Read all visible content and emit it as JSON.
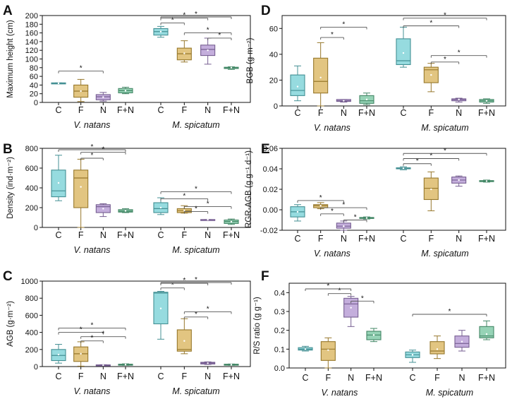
{
  "categories": [
    "C",
    "F",
    "N",
    "F+N"
  ],
  "groups": [
    "V. natans",
    "M. spicatum"
  ],
  "colors": {
    "C": "#5ec8cd",
    "F": "#d2a63d",
    "N": "#a483c9",
    "F+N": "#5dbb8e"
  },
  "chart_data": [
    {
      "panel": "A",
      "type": "box",
      "ylabel": "Maximum height (cm)",
      "ylim": [
        0,
        200
      ],
      "yticks": [
        "0",
        "20",
        "40",
        "60",
        "80",
        "100",
        "120",
        "140",
        "160",
        "180",
        "200"
      ],
      "series": [
        {
          "group": "V. natans",
          "boxes": [
            {
              "cat": "C",
              "min": 43,
              "q1": 43,
              "median": 44,
              "q3": 45,
              "max": 45,
              "mean": 44
            },
            {
              "cat": "F",
              "min": 2,
              "q1": 12,
              "median": 26,
              "q3": 40,
              "max": 53,
              "mean": 26
            },
            {
              "cat": "N",
              "min": 3,
              "q1": 6,
              "median": 13,
              "q3": 18,
              "max": 23,
              "mean": 12
            },
            {
              "cat": "F+N",
              "min": 20,
              "q1": 22,
              "median": 27,
              "q3": 32,
              "max": 35,
              "mean": 27
            }
          ]
        },
        {
          "group": "M. spicatum",
          "boxes": [
            {
              "cat": "C",
              "min": 150,
              "q1": 155,
              "median": 163,
              "q3": 170,
              "max": 175,
              "mean": 163
            },
            {
              "cat": "F",
              "min": 93,
              "q1": 98,
              "median": 112,
              "q3": 125,
              "max": 142,
              "mean": 113
            },
            {
              "cat": "N",
              "min": 88,
              "q1": 108,
              "median": 122,
              "q3": 132,
              "max": 148,
              "mean": 120
            },
            {
              "cat": "F+N",
              "min": 76,
              "q1": 78,
              "median": 80,
              "q3": 81,
              "max": 82,
              "mean": 80
            }
          ]
        }
      ],
      "brackets": [
        {
          "group": 0,
          "from": "C",
          "to": "N",
          "y": 72,
          "label": "*"
        },
        {
          "group": 1,
          "from": "C",
          "to": "F",
          "y": 183,
          "label": "*"
        },
        {
          "group": 1,
          "from": "C",
          "to": "N",
          "y": 194,
          "label": "*"
        },
        {
          "group": 1,
          "from": "C",
          "to": "F+N",
          "y": 205,
          "label": "*"
        },
        {
          "group": 1,
          "from": "F",
          "to": "F+N",
          "y": 160,
          "label": "*"
        },
        {
          "group": 1,
          "from": "N",
          "to": "F+N",
          "y": 148,
          "label": "*"
        }
      ]
    },
    {
      "panel": "B",
      "type": "box",
      "ylabel": "Density (ind·m⁻²)",
      "ylim": [
        0,
        800
      ],
      "yticks": [
        "0",
        "200",
        "400",
        "600",
        "800"
      ],
      "series": [
        {
          "group": "V. natans",
          "boxes": [
            {
              "cat": "C",
              "min": 270,
              "q1": 310,
              "median": 370,
              "q3": 580,
              "max": 730,
              "mean": 450
            },
            {
              "cat": "F",
              "min": 0,
              "q1": 200,
              "median": 500,
              "q3": 580,
              "max": 690,
              "mean": 410
            },
            {
              "cat": "N",
              "min": 110,
              "q1": 150,
              "median": 210,
              "q3": 230,
              "max": 240,
              "mean": 190
            },
            {
              "cat": "F+N",
              "min": 150,
              "q1": 155,
              "median": 165,
              "q3": 180,
              "max": 190,
              "mean": 168
            }
          ]
        },
        {
          "group": "M. spicatum",
          "boxes": [
            {
              "cat": "C",
              "min": 130,
              "q1": 150,
              "median": 190,
              "q3": 250,
              "max": 300,
              "mean": 200
            },
            {
              "cat": "F",
              "min": 145,
              "q1": 150,
              "median": 170,
              "q3": 190,
              "max": 220,
              "mean": 172
            },
            {
              "cat": "N",
              "min": 75,
              "q1": 75,
              "median": 78,
              "q3": 80,
              "max": 80,
              "mean": 78
            },
            {
              "cat": "F+N",
              "min": 30,
              "q1": 40,
              "median": 60,
              "q3": 75,
              "max": 85,
              "mean": 58
            }
          ]
        }
      ],
      "brackets": [
        {
          "group": 0,
          "from": "C",
          "to": "F+N",
          "y": 800,
          "label": "*"
        },
        {
          "group": 0,
          "from": "F",
          "to": "N",
          "y": 700,
          "label": "*"
        },
        {
          "group": 0,
          "from": "F",
          "to": "F+N",
          "y": 760,
          "label": "*"
        },
        {
          "group": 1,
          "from": "C",
          "to": "F+N",
          "y": 360,
          "label": "*"
        },
        {
          "group": 1,
          "from": "C",
          "to": "N",
          "y": 290,
          "label": "*"
        },
        {
          "group": 1,
          "from": "F",
          "to": "F+N",
          "y": 210,
          "label": "*"
        },
        {
          "group": 1,
          "from": "F",
          "to": "N",
          "y": 160,
          "label": "*"
        }
      ]
    },
    {
      "panel": "C",
      "type": "box",
      "ylabel": "AGB (g·m⁻²)",
      "ylim": [
        0,
        1000
      ],
      "yticks": [
        "0",
        "200",
        "400",
        "600",
        "800",
        "1000"
      ],
      "series": [
        {
          "group": "V. natans",
          "boxes": [
            {
              "cat": "C",
              "min": 40,
              "q1": 70,
              "median": 130,
              "q3": 200,
              "max": 260,
              "mean": 140
            },
            {
              "cat": "F",
              "min": 5,
              "q1": 60,
              "median": 150,
              "q3": 230,
              "max": 290,
              "mean": 150
            },
            {
              "cat": "N",
              "min": 10,
              "q1": 12,
              "median": 15,
              "q3": 20,
              "max": 22,
              "mean": 15
            },
            {
              "cat": "F+N",
              "min": 15,
              "q1": 18,
              "median": 22,
              "q3": 28,
              "max": 32,
              "mean": 23
            }
          ]
        },
        {
          "group": "M. spicatum",
          "boxes": [
            {
              "cat": "C",
              "min": 320,
              "q1": 500,
              "median": 860,
              "q3": 870,
              "max": 880,
              "mean": 680
            },
            {
              "cat": "F",
              "min": 150,
              "q1": 180,
              "median": 200,
              "q3": 430,
              "max": 560,
              "mean": 300
            },
            {
              "cat": "N",
              "min": 25,
              "q1": 30,
              "median": 40,
              "q3": 50,
              "max": 55,
              "mean": 40
            },
            {
              "cat": "F+N",
              "min": 15,
              "q1": 18,
              "median": 22,
              "q3": 28,
              "max": 30,
              "mean": 22
            }
          ]
        }
      ],
      "brackets": [
        {
          "group": 0,
          "from": "C",
          "to": "F+N",
          "y": 450,
          "label": "*"
        },
        {
          "group": 0,
          "from": "C",
          "to": "N",
          "y": 400,
          "label": "*"
        },
        {
          "group": 0,
          "from": "F",
          "to": "F+N",
          "y": 350,
          "label": "*"
        },
        {
          "group": 0,
          "from": "F",
          "to": "N",
          "y": 300,
          "label": "*"
        },
        {
          "group": 1,
          "from": "C",
          "to": "F",
          "y": 920,
          "label": "*"
        },
        {
          "group": 1,
          "from": "C",
          "to": "N",
          "y": 975,
          "label": "*"
        },
        {
          "group": 1,
          "from": "C",
          "to": "F+N",
          "y": 1030,
          "label": "*"
        },
        {
          "group": 1,
          "from": "F",
          "to": "N",
          "y": 580,
          "label": "*"
        },
        {
          "group": 1,
          "from": "F",
          "to": "F+N",
          "y": 640,
          "label": "*"
        }
      ]
    },
    {
      "panel": "D",
      "type": "box",
      "ylabel": "BGB (g·m⁻²)",
      "ylim": [
        0,
        70
      ],
      "yticks": [
        "0",
        "20",
        "40",
        "60"
      ],
      "series": [
        {
          "group": "V. natans",
          "boxes": [
            {
              "cat": "C",
              "min": 4,
              "q1": 8,
              "median": 12,
              "q3": 24,
              "max": 31,
              "mean": 15
            },
            {
              "cat": "F",
              "min": 0,
              "q1": 10,
              "median": 19,
              "q3": 37,
              "max": 49,
              "mean": 22
            },
            {
              "cat": "N",
              "min": 3,
              "q1": 3.5,
              "median": 4,
              "q3": 5,
              "max": 5,
              "mean": 4
            },
            {
              "cat": "F+N",
              "min": 1,
              "q1": 2,
              "median": 4,
              "q3": 8,
              "max": 10,
              "mean": 5
            }
          ]
        },
        {
          "group": "M. spicatum",
          "boxes": [
            {
              "cat": "C",
              "min": 30,
              "q1": 32,
              "median": 35,
              "q3": 52,
              "max": 61,
              "mean": 41
            },
            {
              "cat": "F",
              "min": 11,
              "q1": 18,
              "median": 28,
              "q3": 30,
              "max": 33,
              "mean": 24
            },
            {
              "cat": "N",
              "min": 3,
              "q1": 4,
              "median": 5,
              "q3": 5.5,
              "max": 6,
              "mean": 5
            },
            {
              "cat": "F+N",
              "min": 2,
              "q1": 3,
              "median": 4,
              "q3": 5,
              "max": 5.5,
              "mean": 4
            }
          ]
        }
      ],
      "brackets": [
        {
          "group": 0,
          "from": "F",
          "to": "N",
          "y": 53,
          "label": "*"
        },
        {
          "group": 0,
          "from": "F",
          "to": "F+N",
          "y": 61,
          "label": "*"
        },
        {
          "group": 1,
          "from": "C",
          "to": "F+N",
          "y": 68,
          "label": "*"
        },
        {
          "group": 1,
          "from": "C",
          "to": "N",
          "y": 62,
          "label": "*"
        },
        {
          "group": 1,
          "from": "F",
          "to": "F+N",
          "y": 39,
          "label": "*"
        },
        {
          "group": 1,
          "from": "F",
          "to": "N",
          "y": 34,
          "label": "*"
        }
      ]
    },
    {
      "panel": "E",
      "type": "box",
      "ylabel": "RGR-AGB (g g⁻¹ d⁻¹)",
      "ylim": [
        -0.02,
        0.06
      ],
      "yticks": [
        "-0.02",
        "0.00",
        "0.02",
        "0.04",
        "0.06"
      ],
      "series": [
        {
          "group": "V. natans",
          "boxes": [
            {
              "cat": "C",
              "min": -0.011,
              "q1": -0.007,
              "median": -0.002,
              "q3": 0.003,
              "max": 0.005,
              "mean": -0.002
            },
            {
              "cat": "F",
              "min": 0.001,
              "q1": 0.002,
              "median": 0.004,
              "q3": 0.005,
              "max": 0.007,
              "mean": 0.004
            },
            {
              "cat": "N",
              "min": -0.02,
              "q1": -0.018,
              "median": -0.016,
              "q3": -0.013,
              "max": -0.011,
              "mean": -0.016
            },
            {
              "cat": "F+N",
              "min": -0.009,
              "q1": -0.0085,
              "median": -0.008,
              "q3": -0.0075,
              "max": -0.007,
              "mean": -0.008
            }
          ]
        },
        {
          "group": "M. spicatum",
          "boxes": [
            {
              "cat": "C",
              "min": 0.039,
              "q1": 0.04,
              "median": 0.0405,
              "q3": 0.041,
              "max": 0.042,
              "mean": 0.0405
            },
            {
              "cat": "F",
              "min": -0.001,
              "q1": 0.01,
              "median": 0.021,
              "q3": 0.031,
              "max": 0.037,
              "mean": 0.02
            },
            {
              "cat": "N",
              "min": 0.023,
              "q1": 0.026,
              "median": 0.029,
              "q3": 0.032,
              "max": 0.033,
              "mean": 0.029
            },
            {
              "cat": "F+N",
              "min": 0.027,
              "q1": 0.0275,
              "median": 0.028,
              "q3": 0.0285,
              "max": 0.029,
              "mean": 0.028
            }
          ]
        }
      ],
      "brackets": [
        {
          "group": 0,
          "from": "C",
          "to": "N",
          "y": 0.009,
          "label": "*"
        },
        {
          "group": 0,
          "from": "F",
          "to": "N",
          "y": -0.004,
          "label": "*"
        },
        {
          "group": 0,
          "from": "F",
          "to": "F+N",
          "y": 0.002,
          "label": "*"
        },
        {
          "group": 0,
          "from": "N",
          "to": "F+N",
          "y": -0.01,
          "label": "*"
        },
        {
          "group": 1,
          "from": "C",
          "to": "F",
          "y": 0.045,
          "label": "*"
        },
        {
          "group": 1,
          "from": "C",
          "to": "N",
          "y": 0.05,
          "label": "*"
        },
        {
          "group": 1,
          "from": "C",
          "to": "F+N",
          "y": 0.055,
          "label": "*"
        }
      ]
    },
    {
      "panel": "F",
      "type": "box",
      "ylabel": "R/S ratio (g g⁻¹)",
      "ylim": [
        0,
        0.45
      ],
      "yticks": [
        "0.0",
        "0.1",
        "0.2",
        "0.3",
        "0.4"
      ],
      "series": [
        {
          "group": "V. natans",
          "boxes": [
            {
              "cat": "C",
              "min": 0.09,
              "q1": 0.095,
              "median": 0.1,
              "q3": 0.108,
              "max": 0.115,
              "mean": 0.1
            },
            {
              "cat": "F",
              "min": 0.0,
              "q1": 0.04,
              "median": 0.1,
              "q3": 0.14,
              "max": 0.16,
              "mean": 0.095
            },
            {
              "cat": "N",
              "min": 0.22,
              "q1": 0.27,
              "median": 0.34,
              "q3": 0.37,
              "max": 0.38,
              "mean": 0.32
            },
            {
              "cat": "F+N",
              "min": 0.14,
              "q1": 0.15,
              "median": 0.175,
              "q3": 0.195,
              "max": 0.21,
              "mean": 0.175
            }
          ]
        },
        {
          "group": "M. spicatum",
          "boxes": [
            {
              "cat": "C",
              "min": 0.03,
              "q1": 0.055,
              "median": 0.07,
              "q3": 0.085,
              "max": 0.095,
              "mean": 0.07
            },
            {
              "cat": "F",
              "min": 0.05,
              "q1": 0.075,
              "median": 0.09,
              "q3": 0.14,
              "max": 0.17,
              "mean": 0.1
            },
            {
              "cat": "N",
              "min": 0.09,
              "q1": 0.11,
              "median": 0.13,
              "q3": 0.17,
              "max": 0.2,
              "mean": 0.14
            },
            {
              "cat": "F+N",
              "min": 0.15,
              "q1": 0.16,
              "median": 0.17,
              "q3": 0.22,
              "max": 0.25,
              "mean": 0.18
            }
          ]
        }
      ],
      "brackets": [
        {
          "group": 0,
          "from": "C",
          "to": "N",
          "y": 0.42,
          "label": "*"
        },
        {
          "group": 0,
          "from": "F",
          "to": "N",
          "y": 0.395,
          "label": "*"
        },
        {
          "group": 0,
          "from": "N",
          "to": "F+N",
          "y": 0.355,
          "label": "*"
        },
        {
          "group": 1,
          "from": "C",
          "to": "F+N",
          "y": 0.285,
          "label": "*"
        }
      ]
    }
  ]
}
